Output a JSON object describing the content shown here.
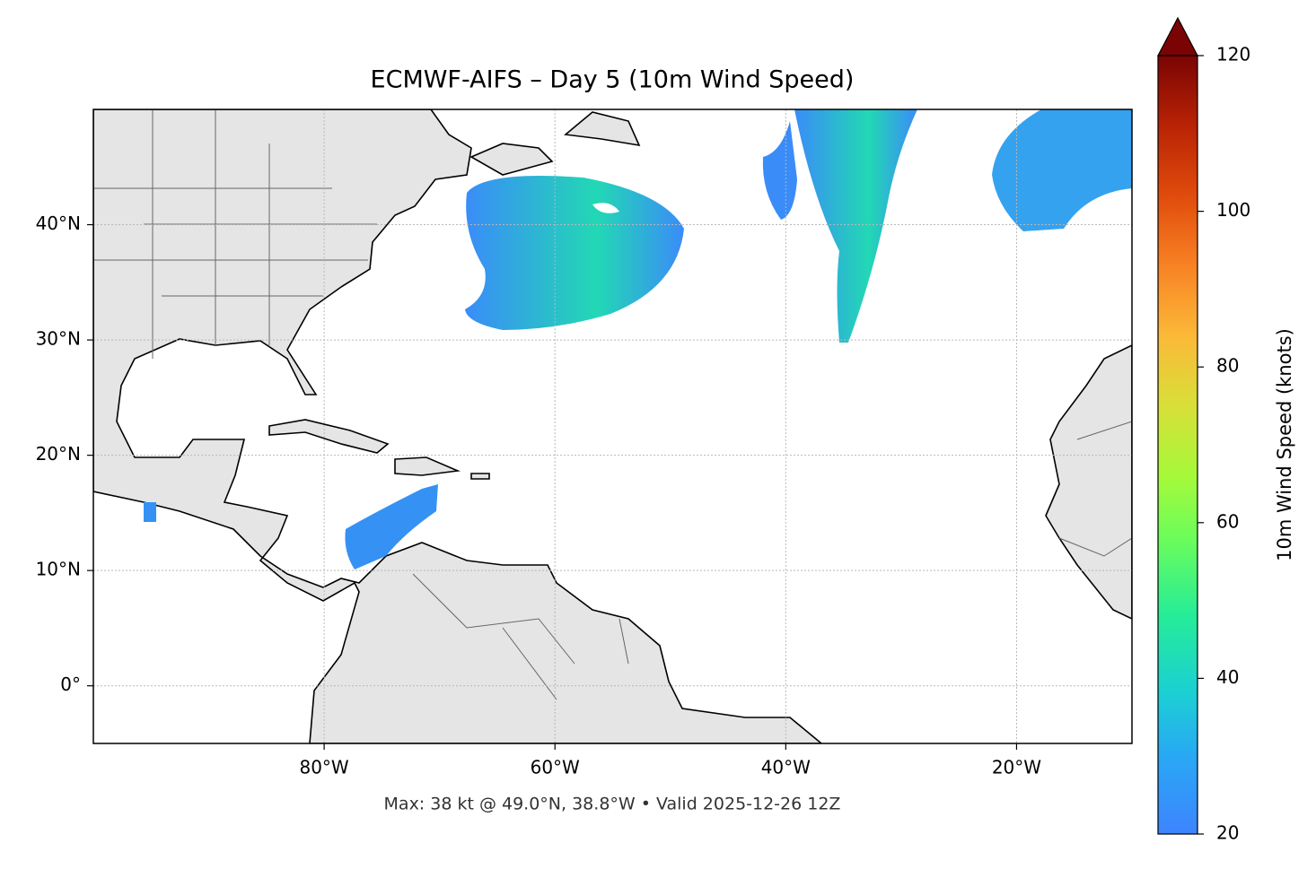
{
  "map": {
    "title": "ECMWF-AIFS – Day 5 (10m Wind Speed)",
    "xlim": [
      -100,
      -10
    ],
    "ylim": [
      -5,
      50
    ],
    "xticks": [
      {
        "value": -80,
        "label": "80°W"
      },
      {
        "value": -60,
        "label": "60°W"
      },
      {
        "value": -40,
        "label": "40°W"
      },
      {
        "value": -20,
        "label": "20°W"
      }
    ],
    "yticks": [
      {
        "value": 0,
        "label": "0°"
      },
      {
        "value": 10,
        "label": "10°N"
      },
      {
        "value": 20,
        "label": "20°N"
      },
      {
        "value": 30,
        "label": "30°N"
      },
      {
        "value": 40,
        "label": "40°N"
      }
    ],
    "grid": true,
    "colorbar": {
      "label": "10m Wind Speed (knots)",
      "lim": [
        20,
        120
      ],
      "ticks": [
        20,
        40,
        60,
        80,
        100,
        120
      ],
      "extend": "max"
    },
    "footer": "Max: 38 kt @ 49.0°N, 38.8°W • Valid 2025-12-26 12Z"
  }
}
